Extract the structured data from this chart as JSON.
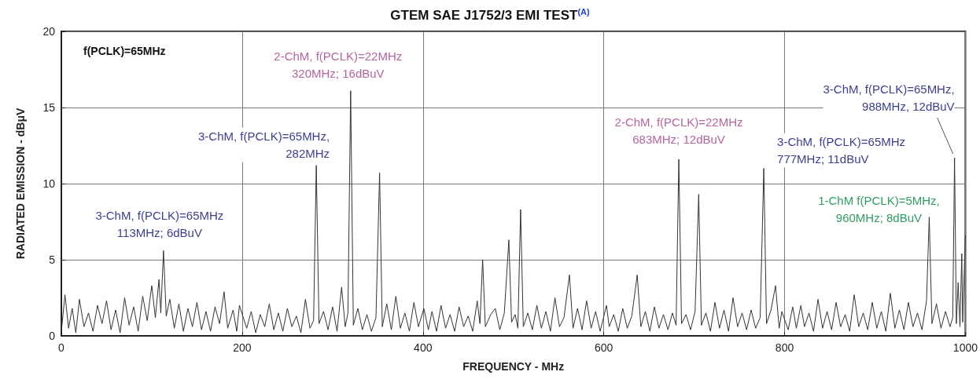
{
  "chart_data": {
    "type": "line",
    "title": "GTEM SAE J1752/3 EMI TEST$^{(A)}$",
    "xlabel": "FREQUENCY - MHz",
    "ylabel": "RADIATED EMISSION - dBμV",
    "xlim": [
      0,
      1000
    ],
    "xticks": [
      0,
      200,
      400,
      600,
      800,
      1000
    ],
    "ylim": [
      0,
      20
    ],
    "yticks": [
      0,
      5,
      10,
      15,
      20
    ],
    "grid": true,
    "marker": "none",
    "line_style": "solid",
    "annotations": [
      "f(PCLK)=65MHz",
      {
        "text": "2-ChM, f(PCLK)=22MHz\n320MHz; 16dBuV",
        "x": 320,
        "y": 16.1
      },
      {
        "text": "3-ChM, f(PCLK)=65MHz,\n282MHz",
        "x": 282,
        "y": 11.2
      },
      {
        "text": "3-ChM, f(PCLK)=65MHz\n113MHz; 6dBuV",
        "x": 113,
        "y": 5.6
      },
      {
        "text": "2-ChM, f(PCLK)=22MHz\n683MHz; 12dBuV",
        "x": 683,
        "y": 11.6
      },
      {
        "text": "3-ChM, f(PCLK)=65MHz\n777MHz; 11dBuV",
        "x": 777,
        "y": 11.0
      },
      {
        "text": "3-ChM, f(PCLK)=65MHz,\n988MHz, 12dBuV",
        "x": 988,
        "y": 11.7
      },
      {
        "text": "1-ChM f(PCLK)=5MHz,\n960MHz; 8dBuV",
        "x": 960,
        "y": 7.8
      }
    ],
    "series": [
      {
        "color": "#333333",
        "x": [
          0,
          4,
          8,
          12,
          16,
          20,
          25,
          30,
          35,
          40,
          45,
          50,
          55,
          60,
          65,
          70,
          75,
          80,
          85,
          90,
          95,
          100,
          104,
          108,
          110,
          113,
          116,
          120,
          125,
          130,
          135,
          140,
          145,
          150,
          155,
          160,
          165,
          170,
          175,
          180,
          184,
          190,
          194,
          197,
          205,
          210,
          215,
          220,
          225,
          230,
          235,
          240,
          245,
          250,
          255,
          260,
          265,
          270,
          275,
          279,
          282,
          285,
          290,
          295,
          300,
          305,
          310,
          314,
          317,
          320,
          323,
          328,
          333,
          338,
          343,
          348,
          352,
          355,
          360,
          365,
          370,
          375,
          380,
          385,
          390,
          395,
          401,
          406,
          410,
          415,
          420,
          425,
          430,
          435,
          440,
          445,
          450,
          455,
          460,
          463,
          466,
          469,
          475,
          480,
          485,
          490,
          495,
          498,
          502,
          505,
          508,
          511,
          516,
          521,
          526,
          531,
          536,
          541,
          546,
          551,
          556,
          562,
          566,
          571,
          576,
          581,
          586,
          591,
          596,
          603,
          606,
          611,
          616,
          621,
          626,
          631,
          637,
          641,
          646,
          651,
          656,
          661,
          666,
          671,
          676,
          680,
          683,
          686,
          691,
          696,
          701,
          705,
          708,
          713,
          718,
          723,
          728,
          733,
          738,
          743,
          748,
          753,
          758,
          763,
          768,
          773,
          777,
          780,
          785,
          790,
          794,
          797,
          804,
          809,
          813,
          818,
          822,
          827,
          832,
          837,
          842,
          847,
          852,
          857,
          862,
          867,
          872,
          877,
          882,
          887,
          892,
          897,
          902,
          907,
          912,
          917,
          922,
          927,
          932,
          937,
          942,
          947,
          952,
          957,
          960,
          963,
          968,
          973,
          978,
          983,
          986,
          988,
          990,
          992,
          994,
          996,
          997,
          1000
        ],
        "values": [
          0.3,
          2.7,
          0.5,
          1.8,
          0.2,
          2.4,
          0.6,
          1.5,
          0.3,
          2.0,
          0.8,
          2.3,
          0.4,
          1.7,
          0.2,
          2.5,
          0.7,
          1.9,
          0.3,
          2.6,
          1.0,
          3.3,
          1.2,
          3.7,
          1.5,
          5.6,
          1.3,
          2.4,
          0.5,
          2.1,
          0.3,
          1.8,
          0.6,
          2.2,
          0.4,
          1.6,
          0.3,
          1.9,
          0.8,
          2.9,
          0.5,
          1.7,
          0.3,
          2.0,
          0.5,
          1.6,
          0.2,
          1.4,
          0.6,
          2.1,
          0.4,
          1.5,
          0.3,
          1.8,
          0.6,
          1.3,
          0.2,
          2.4,
          0.5,
          1.0,
          11.2,
          0.8,
          1.6,
          0.4,
          1.9,
          0.3,
          3.2,
          0.6,
          1.5,
          16.1,
          0.7,
          1.8,
          0.4,
          1.4,
          0.3,
          1.2,
          10.7,
          0.6,
          2.1,
          0.4,
          2.6,
          0.5,
          1.5,
          0.3,
          2.2,
          0.6,
          1.8,
          0.4,
          1.6,
          0.3,
          2.0,
          0.5,
          1.4,
          0.3,
          1.9,
          0.6,
          1.3,
          0.3,
          2.3,
          0.8,
          5.0,
          0.6,
          1.4,
          1.8,
          0.4,
          1.5,
          6.3,
          0.9,
          1.4,
          0.5,
          8.3,
          0.6,
          1.5,
          0.4,
          2.0,
          0.5,
          1.6,
          0.3,
          2.5,
          0.6,
          1.2,
          4.0,
          0.5,
          1.8,
          0.4,
          2.3,
          0.5,
          1.6,
          0.3,
          2.0,
          0.6,
          1.4,
          0.3,
          1.8,
          0.5,
          1.3,
          4.0,
          0.6,
          1.6,
          0.3,
          1.9,
          0.5,
          1.4,
          0.4,
          1.5,
          0.7,
          11.6,
          0.8,
          1.4,
          0.4,
          1.6,
          9.3,
          0.7,
          1.5,
          0.3,
          2.2,
          0.5,
          1.7,
          0.3,
          2.5,
          0.6,
          1.5,
          0.4,
          1.7,
          0.5,
          1.2,
          11.0,
          0.8,
          1.7,
          3.3,
          0.5,
          1.6,
          0.4,
          1.9,
          0.5,
          2.0,
          0.6,
          1.5,
          0.3,
          2.4,
          0.5,
          1.6,
          0.4,
          2.2,
          0.6,
          1.4,
          0.3,
          2.7,
          0.6,
          1.5,
          0.4,
          2.2,
          0.5,
          1.6,
          0.3,
          2.8,
          0.5,
          1.7,
          0.4,
          2.2,
          0.6,
          1.5,
          0.4,
          2.3,
          7.8,
          0.8,
          2.1,
          0.5,
          1.6,
          0.6,
          1.2,
          11.7,
          0.8,
          3.5,
          0.6,
          5.4,
          0.9,
          6.6
        ]
      }
    ]
  }
}
